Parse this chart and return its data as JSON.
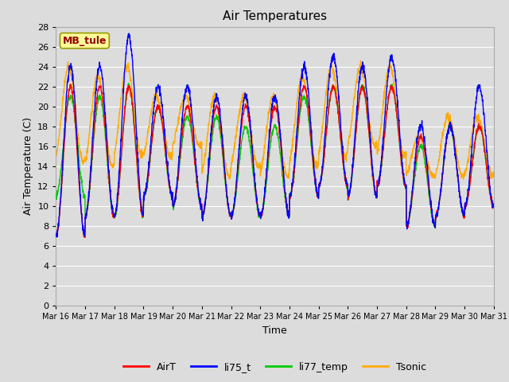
{
  "title": "Air Temperatures",
  "ylabel": "Air Temperature (C)",
  "xlabel": "Time",
  "annotation": "MB_tule",
  "ylim": [
    0,
    28
  ],
  "yticks": [
    0,
    2,
    4,
    6,
    8,
    10,
    12,
    14,
    16,
    18,
    20,
    22,
    24,
    26,
    28
  ],
  "xtick_labels": [
    "Mar 16",
    "Mar 17",
    "Mar 18",
    "Mar 19",
    "Mar 20",
    "Mar 21",
    "Mar 22",
    "Mar 23",
    "Mar 24",
    "Mar 25",
    "Mar 26",
    "Mar 27",
    "Mar 28",
    "Mar 29",
    "Mar 30",
    "Mar 31"
  ],
  "legend_labels": [
    "AirT",
    "li75_t",
    "li77_temp",
    "Tsonic"
  ],
  "line_colors": [
    "#ff0000",
    "#0000ff",
    "#00cc00",
    "#ffaa00"
  ],
  "fig_facecolor": "#dcdcdc",
  "ax_facecolor": "#dcdcdc",
  "grid_color": "#ffffff",
  "annotation_bg": "#ffff99",
  "annotation_edge": "#999900",
  "annotation_fg": "#990000",
  "title_fontsize": 11,
  "axis_label_fontsize": 9,
  "tick_fontsize": 8,
  "legend_fontsize": 9,
  "linewidth": 1.0,
  "n_days": 15,
  "pts_per_day": 144,
  "airt_peaks": [
    22,
    22,
    22,
    20,
    20,
    20,
    20,
    20,
    22,
    22,
    22,
    22,
    17,
    18,
    18
  ],
  "airt_troughs": [
    7,
    9,
    9,
    11,
    10,
    9,
    9,
    9,
    11,
    12,
    11,
    12,
    8,
    9,
    10
  ],
  "li75_peaks": [
    24,
    24,
    27,
    22,
    22,
    21,
    21,
    21,
    24,
    25,
    24,
    25,
    18,
    18,
    22
  ],
  "li75_troughs": [
    7,
    9,
    9,
    11,
    10,
    9,
    9,
    9,
    11,
    12,
    11,
    12,
    8,
    9,
    10
  ],
  "li77_peaks": [
    21,
    21,
    22,
    20,
    19,
    19,
    18,
    18,
    21,
    22,
    22,
    22,
    16,
    18,
    18
  ],
  "li77_troughs": [
    11,
    9,
    9,
    11,
    10,
    9,
    9,
    9,
    11,
    12,
    11,
    12,
    8,
    9,
    10
  ],
  "tsonic_peaks": [
    24,
    23,
    24,
    21,
    21,
    21,
    21,
    21,
    23,
    24,
    24,
    24,
    17,
    19,
    19
  ],
  "tsonic_troughs": [
    14.5,
    14,
    15,
    15,
    16,
    13,
    14,
    13,
    14,
    15,
    16,
    15,
    13,
    13,
    13
  ]
}
